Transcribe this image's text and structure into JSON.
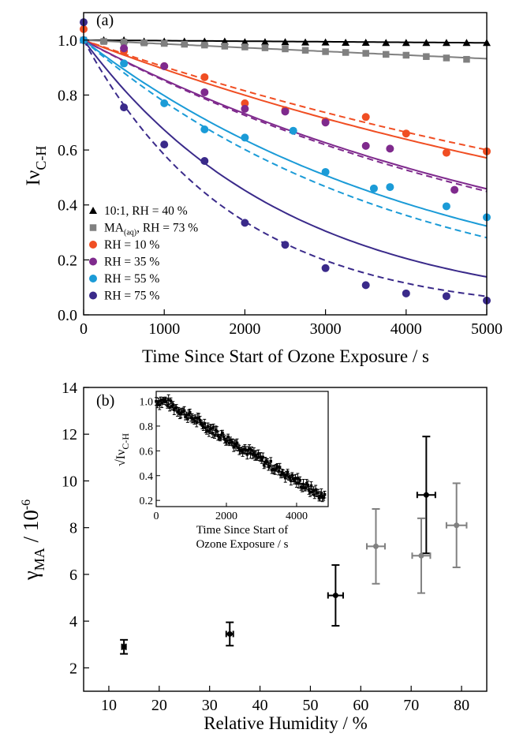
{
  "chart_data": [
    {
      "panel_label": "(a)",
      "type": "line",
      "xlabel": "Time Since Start of Ozone Exposure / s",
      "ylabel": "Iν",
      "ylabel_sub": "C-H",
      "xlim": [
        0,
        5000
      ],
      "ylim": [
        0,
        1.1
      ],
      "xticks": [
        0,
        1000,
        2000,
        3000,
        4000,
        5000
      ],
      "yticks": [
        0.0,
        0.2,
        0.4,
        0.6,
        0.8,
        1.0
      ],
      "legend_position": "bottom-left",
      "series": [
        {
          "name": "10:1, RH = 40 %",
          "color": "#000000",
          "marker": "triangle",
          "points": [
            [
              0,
              1.0
            ],
            [
              250,
              1.0
            ],
            [
              500,
              1.0
            ],
            [
              750,
              0.995
            ],
            [
              1000,
              0.995
            ],
            [
              1250,
              0.995
            ],
            [
              1500,
              0.995
            ],
            [
              1750,
              0.995
            ],
            [
              2000,
              0.993
            ],
            [
              2250,
              0.993
            ],
            [
              2500,
              0.993
            ],
            [
              2750,
              0.992
            ],
            [
              3000,
              0.992
            ],
            [
              3250,
              0.991
            ],
            [
              3500,
              0.991
            ],
            [
              3750,
              0.99
            ],
            [
              4000,
              0.99
            ],
            [
              4250,
              0.99
            ],
            [
              4500,
              0.99
            ],
            [
              4750,
              0.99
            ],
            [
              5000,
              0.99
            ]
          ],
          "fit_solid_k": 2e-06
        },
        {
          "name": "MA",
          "name_sub": "(aq)",
          "name_suffix": ", RH = 73 %",
          "color": "#808080",
          "marker": "square",
          "points": [
            [
              0,
              1.0
            ],
            [
              250,
              0.995
            ],
            [
              500,
              0.993
            ],
            [
              750,
              0.99
            ],
            [
              1000,
              0.988
            ],
            [
              1250,
              0.985
            ],
            [
              1500,
              0.982
            ],
            [
              1750,
              0.978
            ],
            [
              2000,
              0.975
            ],
            [
              2250,
              0.972
            ],
            [
              2500,
              0.968
            ],
            [
              2750,
              0.963
            ],
            [
              3000,
              0.958
            ],
            [
              3250,
              0.955
            ],
            [
              3500,
              0.952
            ],
            [
              3750,
              0.948
            ],
            [
              4000,
              0.945
            ],
            [
              4250,
              0.94
            ],
            [
              4500,
              0.935
            ],
            [
              4750,
              0.93
            ]
          ],
          "fit_solid_k": 1.4e-05
        },
        {
          "name": "RH = 10 %",
          "color": "#f04e23",
          "marker": "circle",
          "points": [
            [
              0,
              1.04
            ],
            [
              500,
              0.96
            ],
            [
              1000,
              0.905
            ],
            [
              1500,
              0.865
            ],
            [
              2000,
              0.77
            ],
            [
              2500,
              0.745
            ],
            [
              3000,
              0.705
            ],
            [
              3500,
              0.72
            ],
            [
              4000,
              0.66
            ],
            [
              4500,
              0.59
            ],
            [
              5000,
              0.595
            ]
          ],
          "fit_solid_k": 0.000112,
          "fit_dashed_k": 0.000102
        },
        {
          "name": "RH = 35 %",
          "color": "#7f2a8d",
          "marker": "circle",
          "points": [
            [
              0,
              1.0
            ],
            [
              500,
              0.97
            ],
            [
              1000,
              0.905
            ],
            [
              1500,
              0.81
            ],
            [
              2000,
              0.75
            ],
            [
              2500,
              0.74
            ],
            [
              3000,
              0.7
            ],
            [
              3500,
              0.615
            ],
            [
              3800,
              0.605
            ],
            [
              4600,
              0.455
            ]
          ],
          "fit_solid_k": 0.000156,
          "fit_dashed_k": 0.00016
        },
        {
          "name": "RH = 55 %",
          "color": "#1b9bd7",
          "marker": "circle",
          "points": [
            [
              0,
              1.0
            ],
            [
              500,
              0.915
            ],
            [
              1000,
              0.77
            ],
            [
              1500,
              0.675
            ],
            [
              2000,
              0.645
            ],
            [
              2600,
              0.67
            ],
            [
              3000,
              0.52
            ],
            [
              3600,
              0.46
            ],
            [
              3800,
              0.465
            ],
            [
              4500,
              0.395
            ],
            [
              5000,
              0.355
            ]
          ],
          "fit_solid_k": 0.000226,
          "fit_dashed_k": 0.000254
        },
        {
          "name": "RH = 75 %",
          "color": "#3a2a8a",
          "marker": "circle",
          "points": [
            [
              0,
              1.065
            ],
            [
              500,
              0.755
            ],
            [
              1000,
              0.62
            ],
            [
              1500,
              0.56
            ],
            [
              2000,
              0.335
            ],
            [
              2500,
              0.255
            ],
            [
              3000,
              0.17
            ],
            [
              3500,
              0.108
            ],
            [
              4000,
              0.078
            ],
            [
              4500,
              0.068
            ],
            [
              5000,
              0.052
            ]
          ],
          "fit_solid_k": 0.000396,
          "fit_dashed_k": 0.00054
        }
      ]
    },
    {
      "panel_label": "(b)",
      "type": "scatter",
      "xlabel": "Relative Humidity / %",
      "ylabel": "γ",
      "ylabel_sub": "MA",
      "ylabel_suffix": " / 10",
      "ylabel_sup": "-6",
      "xlim": [
        5,
        85
      ],
      "ylim": [
        1,
        14
      ],
      "xticks": [
        10,
        20,
        30,
        40,
        50,
        60,
        70,
        80
      ],
      "yticks": [
        2,
        4,
        6,
        8,
        10,
        12,
        14
      ],
      "series": [
        {
          "color": "#000000",
          "points": [
            {
              "x": 13,
              "y": 2.9,
              "xerr": 0.4,
              "yerr": 0.3
            },
            {
              "x": 34,
              "y": 3.45,
              "xerr": 0.7,
              "yerr": 0.5
            },
            {
              "x": 55,
              "y": 5.1,
              "xerr": 1.5,
              "yerr": 1.3
            },
            {
              "x": 73,
              "y": 9.4,
              "xerr": 1.8,
              "yerr": 2.5
            }
          ]
        },
        {
          "color": "#808080",
          "points": [
            {
              "x": 63,
              "y": 7.2,
              "xerr": 1.8,
              "yerr": 1.6
            },
            {
              "x": 72,
              "y": 6.8,
              "xerr": 1.8,
              "yerr": 1.6
            },
            {
              "x": 79,
              "y": 8.1,
              "xerr": 2.0,
              "yerr": 1.8
            }
          ]
        }
      ],
      "inset": {
        "type": "scatter",
        "xlabel_line1": "Time Since Start of",
        "xlabel_line2": "Ozone Exposure  / s",
        "ylabel_prefix": "√Iν",
        "ylabel_sub": "C-H",
        "xlim": [
          0,
          4900
        ],
        "ylim": [
          0.15,
          1.08
        ],
        "xticks": [
          0,
          2000,
          4000
        ],
        "yticks": [
          0.2,
          0.4,
          0.6,
          0.8,
          1.0
        ],
        "trend": {
          "start": [
            0,
            1.0
          ],
          "end": [
            4800,
            0.22
          ],
          "plateau_until": 250
        },
        "color": "#000000"
      }
    }
  ]
}
